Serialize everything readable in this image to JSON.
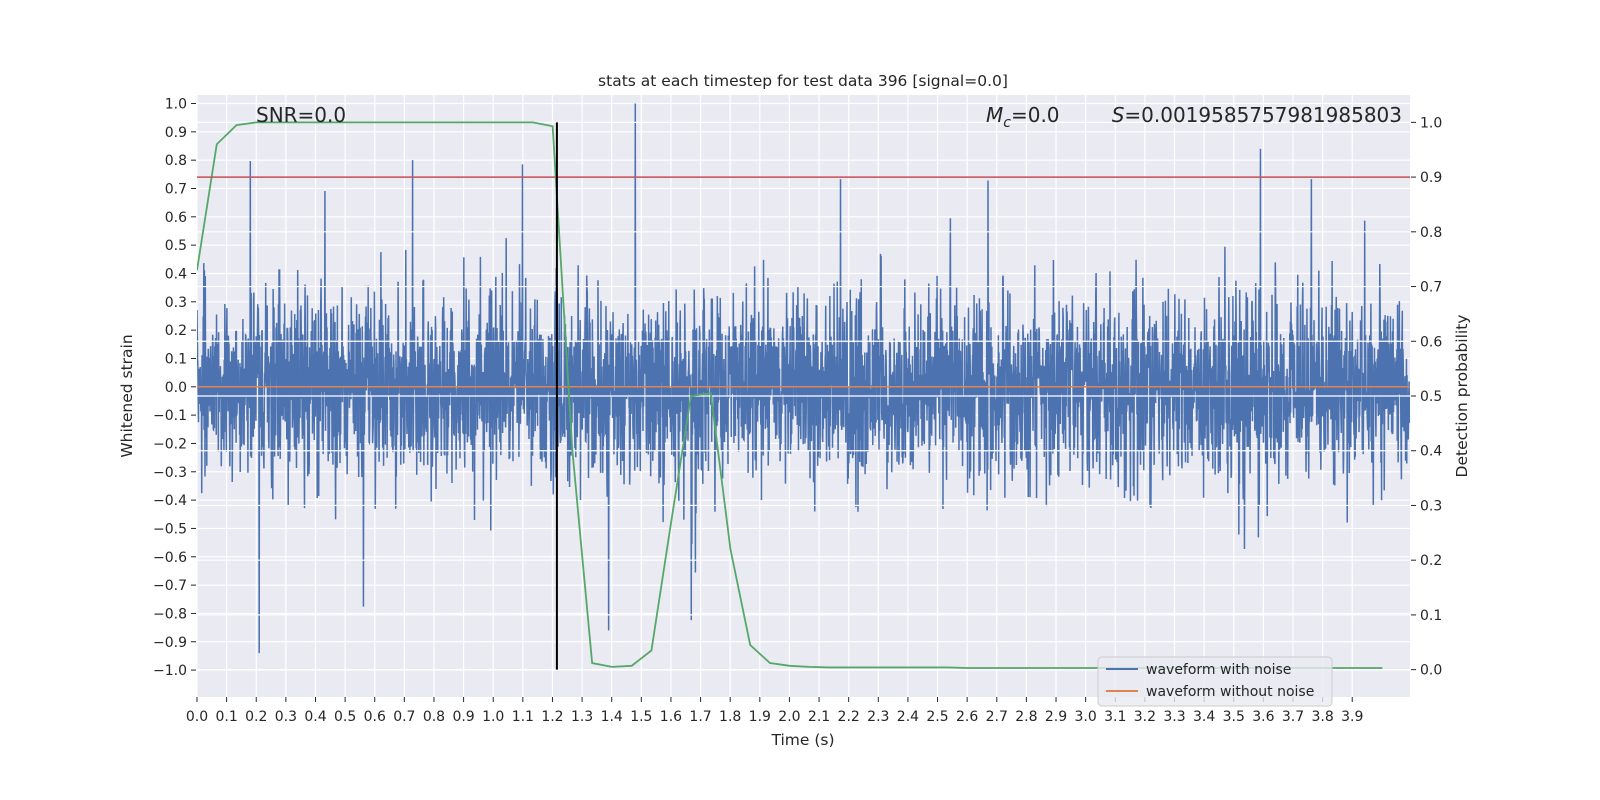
{
  "chart_data": {
    "type": "line",
    "title": "stats at each timestep for test data 396 [signal=0.0]",
    "xlabel": "Time (s)",
    "ylabel": "Whitened strain",
    "ylabel_right": "Detection probability",
    "xlim": [
      0.0,
      4.095
    ],
    "ylim": [
      -1.095,
      1.03
    ],
    "ylim_right": [
      -0.05,
      1.05
    ],
    "xticks": [
      "0.0",
      "0.1",
      "0.2",
      "0.3",
      "0.4",
      "0.5",
      "0.6",
      "0.7",
      "0.8",
      "0.9",
      "1.0",
      "1.1",
      "1.2",
      "1.3",
      "1.4",
      "1.5",
      "1.6",
      "1.7",
      "1.8",
      "1.9",
      "2.0",
      "2.1",
      "2.2",
      "2.3",
      "2.4",
      "2.5",
      "2.6",
      "2.7",
      "2.8",
      "2.9",
      "3.0",
      "3.1",
      "3.2",
      "3.3",
      "3.4",
      "3.5",
      "3.6",
      "3.7",
      "3.8",
      "3.9"
    ],
    "yticks_left": [
      "1.0",
      "0.9",
      "0.8",
      "0.7",
      "0.6",
      "0.5",
      "0.4",
      "0.3",
      "0.2",
      "0.1",
      "0.0",
      "−0.1",
      "−0.2",
      "−0.3",
      "−0.4",
      "−0.5",
      "−0.6",
      "−0.7",
      "−0.8",
      "−0.9",
      "−1.0"
    ],
    "yticks_right": [
      "1.0",
      "0.9",
      "0.8",
      "0.7",
      "0.6",
      "0.5",
      "0.4",
      "0.3",
      "0.2",
      "0.1",
      "0.0"
    ],
    "grid": true,
    "annotations": {
      "snr": "SNR=0.0",
      "mc_symbol": "M",
      "mc_sub": "c",
      "mc_value": "=0.0",
      "s_symbol": "S",
      "s_value": "=0.0019585757981985803"
    },
    "legend": {
      "placement": "lower-right",
      "entries": [
        {
          "label": "waveform with noise",
          "color": "#4c72b0"
        },
        {
          "label": "waveform without noise",
          "color": "#dd8452"
        }
      ]
    },
    "series": [
      {
        "name": "waveform with noise",
        "axis": "left",
        "color": "#4c72b0",
        "kind": "whitened noise",
        "duration_s": 4.095,
        "n_samples": 4096,
        "std": 0.16,
        "notable_peaks": [
          {
            "t": 1.48,
            "v": 1.0
          },
          {
            "t": 0.21,
            "v": -0.94
          },
          {
            "t": 3.59,
            "v": 0.84
          },
          {
            "t": 1.39,
            "v": -0.86
          }
        ]
      },
      {
        "name": "waveform without noise",
        "axis": "left",
        "color": "#dd8452",
        "value": 0.0
      },
      {
        "name": "detection probability",
        "axis": "right",
        "color": "#55a868",
        "t_step": 0.0667,
        "values": [
          0.73,
          0.96,
          0.995,
          1.0,
          1.0,
          1.0,
          1.0,
          1.0,
          1.0,
          1.0,
          1.0,
          1.0,
          1.0,
          1.0,
          1.0,
          1.0,
          1.0,
          1.0,
          0.993,
          0.4,
          0.012,
          0.005,
          0.007,
          0.035,
          0.27,
          0.5,
          0.505,
          0.22,
          0.045,
          0.012,
          0.007,
          0.005,
          0.004,
          0.004,
          0.004,
          0.004,
          0.004,
          0.004,
          0.004,
          0.003,
          0.003,
          0.003,
          0.003,
          0.003,
          0.003,
          0.003,
          0.003,
          0.003,
          0.003,
          0.003,
          0.003,
          0.003,
          0.003,
          0.003,
          0.003,
          0.003,
          0.003,
          0.003,
          0.003,
          0.003,
          0.003
        ]
      },
      {
        "name": "threshold",
        "axis": "right",
        "color": "#c44e52",
        "value": 0.9
      },
      {
        "name": "detection time",
        "axis": "right",
        "color": "#000000",
        "t": 1.215,
        "range": [
          0.0,
          1.0
        ]
      }
    ]
  }
}
